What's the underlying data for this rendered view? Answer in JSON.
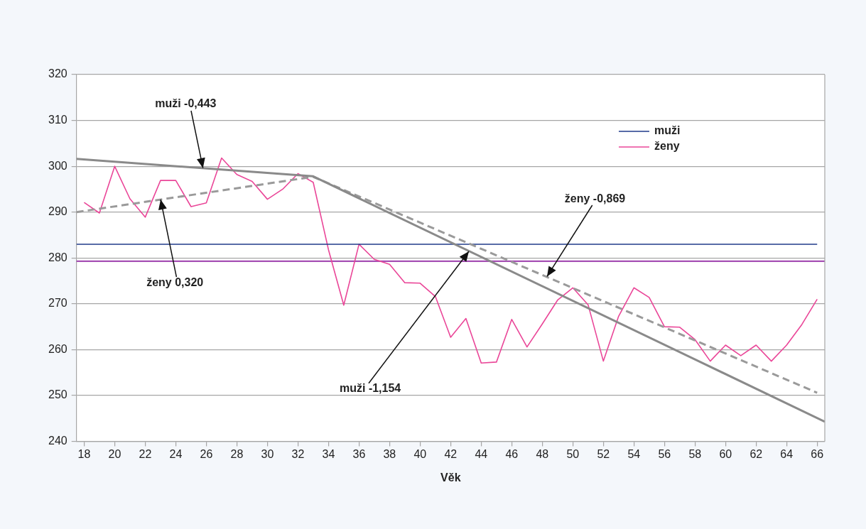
{
  "chart_data": {
    "type": "line",
    "xlabel": "Věk",
    "xlim": [
      17.5,
      66.5
    ],
    "xticks": [
      18,
      20,
      22,
      24,
      26,
      28,
      30,
      32,
      34,
      36,
      38,
      40,
      42,
      44,
      46,
      48,
      50,
      52,
      54,
      56,
      58,
      60,
      62,
      64,
      66
    ],
    "ylim": [
      240,
      320
    ],
    "yticks": [
      240,
      250,
      260,
      270,
      280,
      290,
      300,
      310,
      320
    ],
    "grid": "y",
    "legend": "top right",
    "marker": "none",
    "x": [
      18,
      19,
      20,
      21,
      22,
      23,
      24,
      25,
      26,
      27,
      28,
      29,
      30,
      31,
      32,
      33,
      34,
      35,
      36,
      37,
      38,
      39,
      40,
      41,
      42,
      43,
      44,
      45,
      46,
      47,
      48,
      49,
      50,
      51,
      52,
      53,
      54,
      55,
      56,
      57,
      58,
      59,
      60,
      61,
      62,
      63,
      64,
      65,
      66
    ],
    "ref_lines": [
      {
        "axis": "y",
        "value": 279.3,
        "color": "#a650b4"
      }
    ],
    "annotations": [
      {
        "text": "muži -0,443",
        "x": 25.8,
        "y": 299.6
      },
      {
        "text": "ženy 0,320",
        "x": 23.0,
        "y": 292.7
      },
      {
        "text": "muži -1,154",
        "x": 43.2,
        "y": 281.5
      },
      {
        "text": "ženy -0,869",
        "x": 48.3,
        "y": 275.9
      }
    ],
    "series": [
      {
        "name": "muži",
        "color": "#1f3a8a",
        "x": [
          17.5,
          66
        ],
        "values": [
          283.0,
          283.0
        ]
      },
      {
        "name": "ženy",
        "color": "#ea4698",
        "values": [
          292.1,
          289.8,
          300.0,
          292.9,
          288.9,
          296.9,
          296.9,
          291.2,
          292.0,
          301.8,
          298.2,
          296.7,
          292.8,
          295.0,
          298.4,
          296.5,
          281.8,
          269.7,
          283.0,
          279.7,
          278.6,
          274.6,
          274.5,
          271.6,
          262.7,
          266.8,
          257.1,
          257.3,
          266.6,
          260.6,
          265.6,
          270.8,
          273.5,
          269.8,
          257.5,
          267.3,
          273.5,
          271.4,
          265.0,
          264.9,
          262.2,
          257.5,
          261.0,
          258.7,
          261.0,
          257.5,
          261.0,
          265.5,
          271.0
        ]
      },
      {
        "type": "line",
        "color": "#8a8a8a",
        "x": [
          17.5,
          33,
          66.5
        ],
        "values": [
          301.6,
          297.8,
          244.3
        ]
      },
      {
        "type": "line",
        "color": "#9a9a9a",
        "line_style": "dashed",
        "x": [
          17.5,
          33,
          66
        ],
        "values": [
          290.0,
          297.7,
          250.6
        ]
      }
    ]
  }
}
